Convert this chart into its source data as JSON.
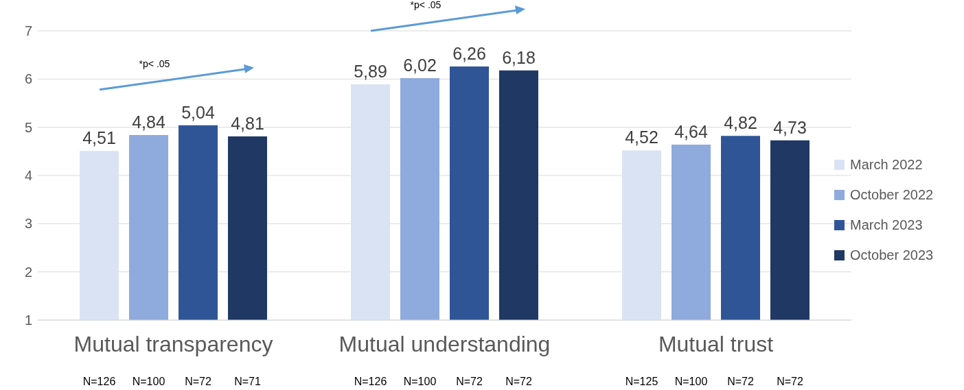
{
  "chart_data": {
    "type": "bar",
    "categories": [
      "Mutual transparency",
      "Mutual understanding",
      "Mutual trust"
    ],
    "series": [
      {
        "name": "March 2022",
        "color": "#dae3f3",
        "values": [
          4.51,
          5.89,
          4.52
        ],
        "value_labels": [
          "4,51",
          "5,89",
          "4,52"
        ]
      },
      {
        "name": "October 2022",
        "color": "#8faadc",
        "values": [
          4.84,
          6.02,
          4.64
        ],
        "value_labels": [
          "4,84",
          "6,02",
          "4,64"
        ]
      },
      {
        "name": "March 2023",
        "color": "#2f5597",
        "values": [
          5.04,
          6.26,
          4.82
        ],
        "value_labels": [
          "5,04",
          "6,26",
          "4,82"
        ]
      },
      {
        "name": "October 2023",
        "color": "#203864",
        "values": [
          4.81,
          6.18,
          4.73
        ],
        "value_labels": [
          "4,81",
          "6,18",
          "4,73"
        ]
      }
    ],
    "ylim": [
      1,
      7
    ],
    "yticks": [
      1,
      2,
      3,
      4,
      5,
      6,
      7
    ],
    "grid": "y",
    "legend": "right",
    "annotations": [
      "*p< .05",
      "*p< .05",
      "N=126",
      "N=100",
      "N=72",
      "N=71",
      "N=126",
      "N=100",
      "N=72",
      "N=72",
      "N=125",
      "N=100",
      "N=72",
      "N=72"
    ]
  }
}
